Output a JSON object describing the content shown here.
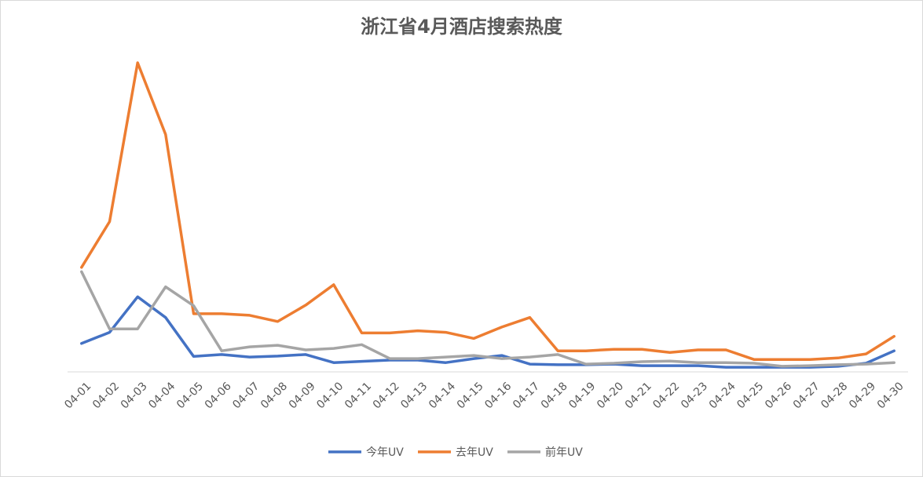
{
  "chart_data": {
    "type": "line",
    "title": "浙江省4月酒店搜索热度",
    "xlabel": "",
    "ylabel": "",
    "ylim": [
      0,
      100
    ],
    "grid": false,
    "legend_position": "bottom",
    "categories": [
      "04-01",
      "04-02",
      "04-03",
      "04-04",
      "04-05",
      "04-06",
      "04-07",
      "04-08",
      "04-09",
      "04-10",
      "04-11",
      "04-12",
      "04-13",
      "04-14",
      "04-15",
      "04-16",
      "04-17",
      "04-18",
      "04-19",
      "04-20",
      "04-21",
      "04-22",
      "04-23",
      "04-24",
      "04-25",
      "04-26",
      "04-27",
      "04-28",
      "04-29",
      "04-30"
    ],
    "series": [
      {
        "name": "今年UV",
        "color": "#4472C4",
        "values": [
          9.2,
          12.8,
          24.3,
          17.6,
          5.0,
          5.6,
          4.8,
          5.1,
          5.6,
          3.0,
          3.4,
          3.8,
          3.8,
          3.0,
          4.3,
          5.3,
          2.5,
          2.3,
          2.3,
          2.5,
          2.0,
          2.0,
          2.0,
          1.5,
          1.5,
          1.5,
          1.5,
          1.8,
          2.8,
          6.8
        ]
      },
      {
        "name": "去年UV",
        "color": "#ED7D31",
        "values": [
          33.8,
          48.6,
          100.0,
          76.8,
          18.8,
          18.8,
          18.3,
          16.3,
          21.6,
          28.2,
          12.6,
          12.6,
          13.3,
          12.8,
          10.8,
          14.5,
          17.6,
          6.8,
          6.8,
          7.3,
          7.3,
          6.3,
          7.1,
          7.1,
          4.0,
          4.0,
          4.0,
          4.5,
          5.8,
          11.5
        ]
      },
      {
        "name": "前年UV",
        "color": "#A5A5A5",
        "values": [
          32.4,
          13.9,
          13.9,
          27.5,
          21.4,
          6.8,
          8.1,
          8.6,
          7.1,
          7.6,
          8.8,
          4.3,
          4.3,
          4.8,
          5.3,
          4.3,
          4.8,
          5.6,
          2.5,
          2.8,
          3.3,
          3.5,
          3.0,
          3.0,
          2.8,
          1.8,
          2.0,
          2.3,
          2.5,
          3.0
        ]
      }
    ]
  }
}
